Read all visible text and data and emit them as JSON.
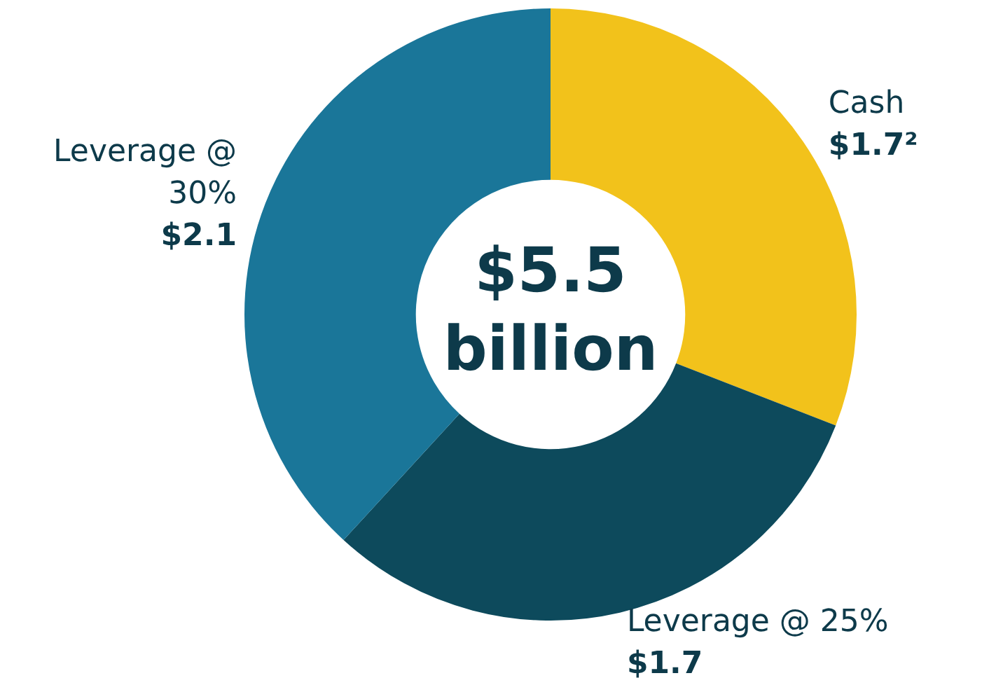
{
  "chart_data": {
    "type": "donut",
    "categories": [
      "Cash",
      "Leverage @ 25%",
      "Leverage @ 30%"
    ],
    "values": [
      1.7,
      1.7,
      2.1
    ],
    "value_labels": [
      "$1.7²",
      "$1.7",
      "$2.1"
    ],
    "colors": [
      "#f2c21b",
      "#0d4a5c",
      "#1a7699"
    ],
    "annotations": [
      "$5.5 billion"
    ],
    "legend": false
  }
}
